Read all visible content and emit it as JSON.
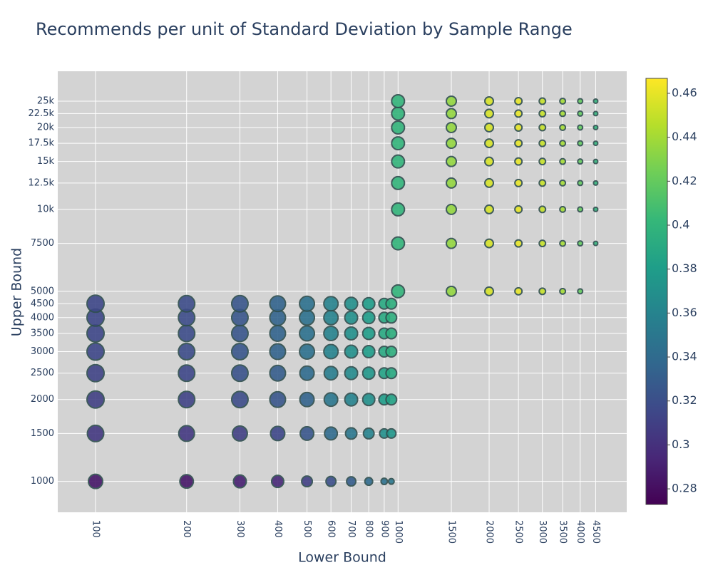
{
  "chart_data": {
    "type": "scatter",
    "title": "Recommends per unit of Standard Deviation by Sample Range",
    "x_label": "Lower Bound",
    "y_label": "Upper Bound",
    "log_x": true,
    "log_y": true,
    "grid": true,
    "xlim": [
      75,
      5700
    ],
    "ylim": [
      770,
      32200
    ],
    "xticks": [
      100,
      200,
      300,
      400,
      500,
      600,
      700,
      800,
      900,
      1000,
      1500,
      2000,
      2500,
      3000,
      3500,
      4000,
      4500
    ],
    "yticks": [
      1000,
      1500,
      2000,
      2500,
      3000,
      3500,
      4000,
      4500,
      5000,
      7500,
      {
        "value": 10000,
        "label": "10k"
      },
      {
        "value": 12500,
        "label": "12.5k"
      },
      {
        "value": 15000,
        "label": "15k"
      },
      {
        "value": 17500,
        "label": "17.5k"
      },
      {
        "value": 20000,
        "label": "20k"
      },
      {
        "value": 22500,
        "label": "22.5k"
      },
      {
        "value": 25000,
        "label": "25k"
      }
    ],
    "colorscale": [
      "#440154",
      "#482878",
      "#3e4989",
      "#31688e",
      "#26828e",
      "#1f9e89",
      "#35b779",
      "#6ece58",
      "#b5de2b",
      "#fde725"
    ],
    "clim": [
      0.2729,
      0.4668
    ],
    "cticks": [
      0.28,
      0.3,
      0.32,
      0.34,
      0.36,
      0.38,
      0.4,
      0.42,
      0.44,
      0.46
    ],
    "marker_line_color": "#2f4f4f",
    "x": [
      100,
      100,
      100,
      100,
      100,
      100,
      100,
      100,
      200,
      200,
      200,
      200,
      200,
      200,
      200,
      200,
      300,
      300,
      300,
      300,
      300,
      300,
      300,
      300,
      400,
      400,
      400,
      400,
      400,
      400,
      400,
      400,
      500,
      500,
      500,
      500,
      500,
      500,
      500,
      500,
      600,
      600,
      600,
      600,
      600,
      600,
      600,
      600,
      700,
      700,
      700,
      700,
      700,
      700,
      700,
      700,
      800,
      800,
      800,
      800,
      800,
      800,
      800,
      800,
      900,
      900,
      900,
      900,
      900,
      900,
      900,
      900,
      950,
      950,
      950,
      950,
      950,
      950,
      950,
      950,
      1000,
      1000,
      1000,
      1000,
      1000,
      1000,
      1000,
      1000,
      1000,
      1500,
      1500,
      1500,
      1500,
      1500,
      1500,
      1500,
      1500,
      1500,
      2000,
      2000,
      2000,
      2000,
      2000,
      2000,
      2000,
      2000,
      2000,
      2500,
      2500,
      2500,
      2500,
      2500,
      2500,
      2500,
      2500,
      2500,
      3000,
      3000,
      3000,
      3000,
      3000,
      3000,
      3000,
      3000,
      3000,
      3500,
      3500,
      3500,
      3500,
      3500,
      3500,
      3500,
      3500,
      3500,
      4000,
      4000,
      4000,
      4000,
      4000,
      4000,
      4000,
      4000,
      4000,
      4500,
      4500,
      4500,
      4500,
      4500,
      4500,
      4500,
      4500
    ],
    "y": [
      1000,
      1500,
      2000,
      2500,
      3000,
      3500,
      4000,
      4500,
      1000,
      1500,
      2000,
      2500,
      3000,
      3500,
      4000,
      4500,
      1000,
      1500,
      2000,
      2500,
      3000,
      3500,
      4000,
      4500,
      1000,
      1500,
      2000,
      2500,
      3000,
      3500,
      4000,
      4500,
      1000,
      1500,
      2000,
      2500,
      3000,
      3500,
      4000,
      4500,
      1000,
      1500,
      2000,
      2500,
      3000,
      3500,
      4000,
      4500,
      1000,
      1500,
      2000,
      2500,
      3000,
      3500,
      4000,
      4500,
      1000,
      1500,
      2000,
      2500,
      3000,
      3500,
      4000,
      4500,
      1000,
      1500,
      2000,
      2500,
      3000,
      3500,
      4000,
      4500,
      1000,
      1500,
      2000,
      2500,
      3000,
      3500,
      4000,
      4500,
      5000,
      7500,
      10000,
      12500,
      15000,
      17500,
      20000,
      22500,
      25000,
      5000,
      7500,
      10000,
      12500,
      15000,
      17500,
      20000,
      22500,
      25000,
      5000,
      7500,
      10000,
      12500,
      15000,
      17500,
      20000,
      22500,
      25000,
      5000,
      7500,
      10000,
      12500,
      15000,
      17500,
      20000,
      22500,
      25000,
      5000,
      7500,
      10000,
      12500,
      15000,
      17500,
      20000,
      22500,
      25000,
      5000,
      7500,
      10000,
      12500,
      15000,
      17500,
      20000,
      22500,
      25000,
      5000,
      7500,
      10000,
      12500,
      15000,
      17500,
      20000,
      22500,
      25000,
      7500,
      10000,
      12500,
      15000,
      17500,
      20000,
      22500,
      25000
    ],
    "color_values": [
      0.285,
      0.305,
      0.31,
      0.312,
      0.315,
      0.315,
      0.315,
      0.315,
      0.285,
      0.305,
      0.312,
      0.315,
      0.318,
      0.318,
      0.318,
      0.318,
      0.29,
      0.31,
      0.318,
      0.322,
      0.325,
      0.325,
      0.325,
      0.325,
      0.295,
      0.315,
      0.325,
      0.33,
      0.335,
      0.335,
      0.335,
      0.335,
      0.31,
      0.325,
      0.335,
      0.34,
      0.345,
      0.345,
      0.345,
      0.345,
      0.32,
      0.34,
      0.35,
      0.355,
      0.36,
      0.36,
      0.36,
      0.36,
      0.33,
      0.35,
      0.36,
      0.365,
      0.37,
      0.37,
      0.37,
      0.37,
      0.34,
      0.36,
      0.37,
      0.375,
      0.38,
      0.38,
      0.38,
      0.38,
      0.345,
      0.37,
      0.38,
      0.385,
      0.39,
      0.39,
      0.39,
      0.39,
      0.35,
      0.375,
      0.385,
      0.39,
      0.395,
      0.395,
      0.395,
      0.395,
      0.4,
      0.4,
      0.4,
      0.4,
      0.4,
      0.4,
      0.4,
      0.4,
      0.4,
      0.435,
      0.435,
      0.435,
      0.435,
      0.435,
      0.435,
      0.435,
      0.435,
      0.435,
      0.455,
      0.455,
      0.455,
      0.455,
      0.455,
      0.455,
      0.455,
      0.455,
      0.455,
      0.46,
      0.46,
      0.46,
      0.46,
      0.46,
      0.46,
      0.46,
      0.46,
      0.46,
      0.45,
      0.45,
      0.45,
      0.45,
      0.45,
      0.45,
      0.45,
      0.45,
      0.45,
      0.44,
      0.44,
      0.44,
      0.44,
      0.44,
      0.44,
      0.44,
      0.44,
      0.44,
      0.42,
      0.42,
      0.42,
      0.42,
      0.42,
      0.42,
      0.42,
      0.42,
      0.42,
      0.4,
      0.4,
      0.4,
      0.4,
      0.4,
      0.4,
      0.4,
      0.4
    ],
    "sizes": [
      20,
      23,
      24,
      24,
      24,
      24,
      24,
      24,
      19,
      22,
      23,
      23,
      23,
      23,
      23,
      23,
      18,
      21,
      23,
      23,
      23,
      23,
      23,
      23,
      17,
      20,
      22,
      22,
      22,
      22,
      22,
      22,
      15,
      19,
      20,
      20,
      21,
      21,
      21,
      21,
      14,
      18,
      19,
      19,
      20,
      20,
      20,
      20,
      13,
      16,
      18,
      18,
      18,
      18,
      18,
      18,
      11,
      15,
      17,
      17,
      17,
      17,
      17,
      17,
      9,
      13,
      15,
      15,
      15,
      15,
      15,
      15,
      8,
      13,
      15,
      15,
      15,
      15,
      15,
      15,
      18,
      18,
      18,
      18,
      18,
      18,
      18,
      18,
      18,
      14,
      14,
      14,
      14,
      14,
      14,
      14,
      14,
      14,
      12,
      12,
      12,
      12,
      12,
      12,
      12,
      12,
      12,
      10,
      10,
      10,
      10,
      10,
      10,
      10,
      10,
      10,
      9,
      9,
      9,
      9,
      9,
      9,
      9,
      9,
      9,
      8,
      8,
      8,
      8,
      8,
      8,
      8,
      8,
      8,
      7,
      7,
      7,
      7,
      7,
      7,
      7,
      7,
      7,
      6,
      6,
      6,
      6,
      6,
      6,
      6,
      6
    ]
  }
}
